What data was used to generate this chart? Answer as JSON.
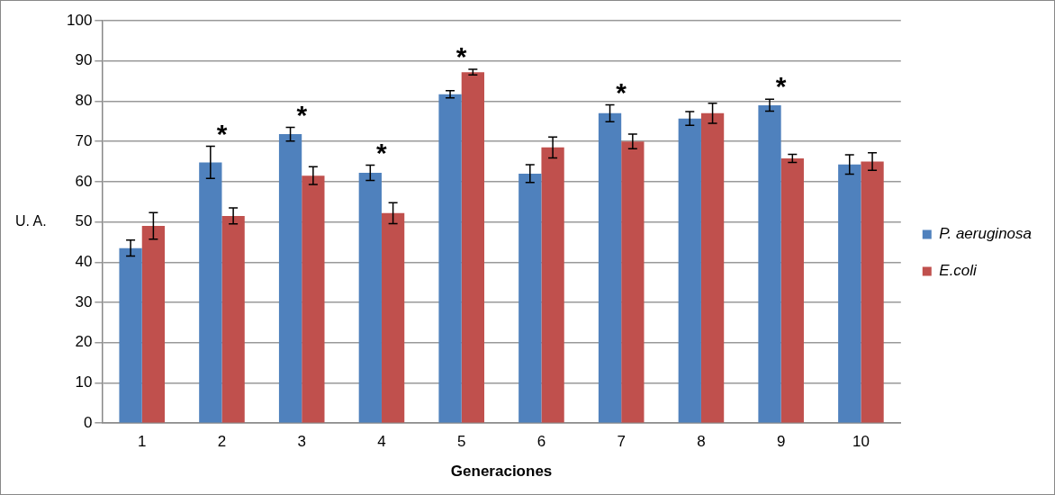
{
  "chart_data": {
    "type": "bar",
    "xlabel": "Generaciones",
    "ylabel": "U. A.",
    "categories": [
      "1",
      "2",
      "3",
      "4",
      "5",
      "6",
      "7",
      "8",
      "9",
      "10"
    ],
    "series": [
      {
        "name": "P. aeruginosa",
        "color": "#4f81bd",
        "values": [
          43.5,
          64.8,
          71.8,
          62.2,
          81.7,
          62,
          77,
          75.7,
          79,
          64.3
        ],
        "errors": [
          2,
          4,
          1.7,
          1.9,
          0.9,
          2.2,
          2.1,
          1.7,
          1.5,
          2.4
        ]
      },
      {
        "name": "E.coli",
        "color": "#c0504d",
        "values": [
          49,
          51.5,
          61.5,
          52.2,
          87.2,
          68.5,
          70,
          77,
          65.8,
          65
        ],
        "errors": [
          3.3,
          2,
          2.2,
          2.6,
          0.7,
          2.6,
          1.8,
          2.5,
          1,
          2.2
        ]
      }
    ],
    "ylim": [
      0,
      100
    ],
    "yticks": [
      0,
      10,
      20,
      30,
      40,
      50,
      60,
      70,
      80,
      90,
      100
    ],
    "grid": "y",
    "legend": "right",
    "annotations": [
      {
        "text": "*",
        "x": "2",
        "y": 64.8
      },
      {
        "text": "*",
        "x": "3",
        "y": 71.8
      },
      {
        "text": "*",
        "x": "4",
        "y": 62.2
      },
      {
        "text": "*",
        "x": "5",
        "y": 87.2
      },
      {
        "text": "*",
        "x": "7",
        "y": 77
      },
      {
        "text": "*",
        "x": "9",
        "y": 79
      }
    ]
  }
}
